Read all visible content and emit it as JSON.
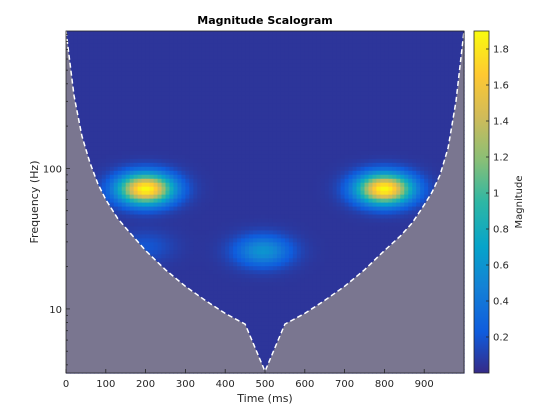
{
  "chart_data": {
    "type": "heatmap",
    "title": "Magnitude Scalogram",
    "xlabel": "Time (ms)",
    "ylabel": "Frequency (Hz)",
    "xlim": [
      0,
      1000
    ],
    "ylim": [
      3.5,
      950
    ],
    "yscale": "log",
    "x_ticks": [
      0,
      100,
      200,
      300,
      400,
      500,
      600,
      700,
      800,
      900
    ],
    "y_ticks": [
      10,
      100
    ],
    "colorbar": {
      "label": "Magnitude",
      "range": [
        0,
        1.9
      ],
      "ticks": [
        0.2,
        0.4,
        0.6,
        0.8,
        1,
        1.2,
        1.4,
        1.6,
        1.8
      ],
      "colormap": "parula"
    },
    "background_value": 0.05,
    "blobs": [
      {
        "time_ms": 200,
        "freq_hz": 72,
        "magnitude": 1.85
      },
      {
        "time_ms": 800,
        "freq_hz": 72,
        "magnitude": 1.85
      },
      {
        "time_ms": 495,
        "freq_hz": 26,
        "magnitude": 0.55
      },
      {
        "time_ms": 200,
        "freq_hz": 28,
        "magnitude": 0.15
      }
    ],
    "cone_of_influence": {
      "times_ms": [
        0,
        20,
        40,
        60,
        80,
        100,
        130,
        160,
        200,
        250,
        300,
        350,
        400,
        450,
        500,
        550,
        600,
        650,
        700,
        750,
        800,
        840,
        870,
        900,
        920,
        940,
        960,
        980,
        1000
      ],
      "freq_hz": [
        950,
        330,
        170,
        110,
        78,
        60,
        44,
        35,
        26,
        19,
        14.5,
        11.5,
        9.3,
        7.8,
        3.6,
        7.8,
        9.3,
        11.5,
        14.5,
        19,
        26,
        33,
        41,
        55,
        68,
        90,
        140,
        300,
        950
      ]
    },
    "colors": {
      "coi_shade": "#7a7690",
      "axis": "#262626"
    }
  }
}
